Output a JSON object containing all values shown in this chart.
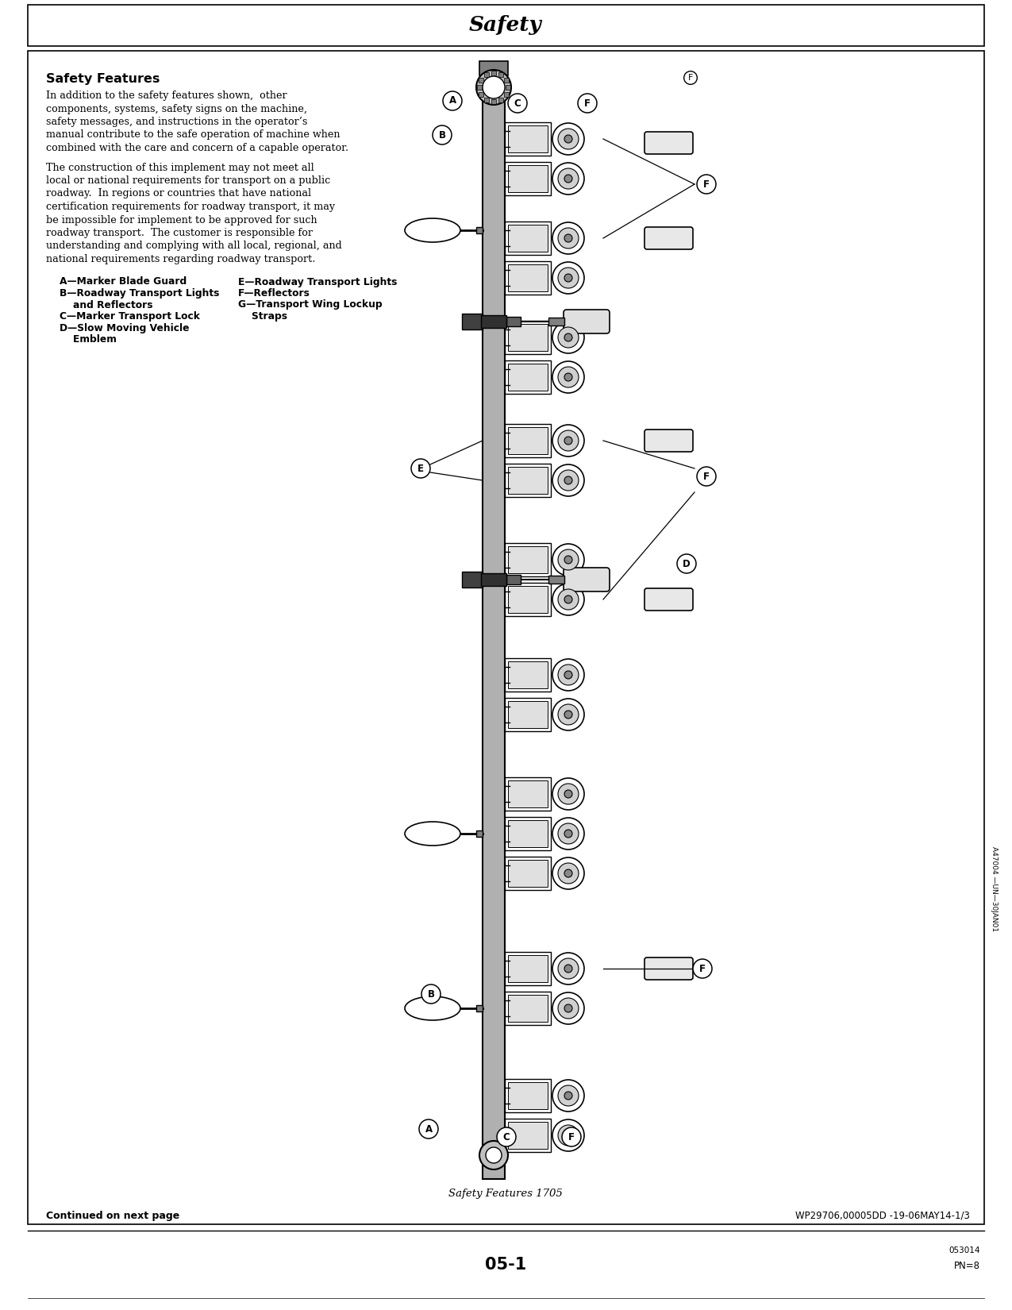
{
  "page_title": "Safety",
  "section_title": "Safety Features",
  "body1_lines": [
    "In addition to the safety features shown,  other",
    "components, systems, safety signs on the machine,",
    "safety messages, and instructions in the operator’s",
    "manual contribute to the safe operation of machine when",
    "combined with the care and concern of a capable operator."
  ],
  "body2_lines": [
    "The construction of this implement may not meet all",
    "local or national requirements for transport on a public",
    "roadway.  In regions or countries that have national",
    "certification requirements for roadway transport, it may",
    "be impossible for implement to be approved for such",
    "roadway transport.  The customer is responsible for",
    "understanding and complying with all local, regional, and",
    "national requirements regarding roadway transport."
  ],
  "legend_col1": [
    "A—Marker Blade Guard",
    "B—Roadway Transport Lights",
    "    and Reflectors",
    "C—Marker Transport Lock",
    "D—Slow Moving Vehicle",
    "    Emblem"
  ],
  "legend_col2": [
    "E—Roadway Transport Lights",
    "F—Reflectors",
    "G—Transport Wing Lockup",
    "    Straps"
  ],
  "caption": "Safety Features 1705",
  "footer_left": "Continued on next page",
  "footer_right": "WP29706,00005DD -19-06MAY14-1/3",
  "page_number": "05-1",
  "page_code": "053014",
  "pn": "PN=8",
  "watermark": "A47004 —UN—30JAN01",
  "bg_color": "#ffffff"
}
